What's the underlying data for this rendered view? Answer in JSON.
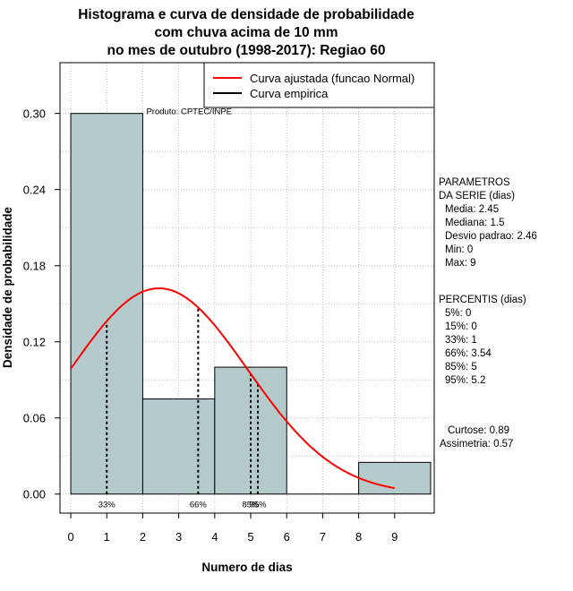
{
  "chart_data": {
    "type": "bar",
    "title_lines": [
      "Histograma e curva de densidade de probabilidade",
      "com chuva acima de 10 mm",
      "no mes de outubro (1998-2017): Regiao 60"
    ],
    "xlabel": "Numero de dias",
    "ylabel": "Densidade de probabilidade",
    "xlim": [
      -0.3,
      10.1
    ],
    "ylim": [
      -0.015,
      0.34
    ],
    "x_ticks": [
      0,
      1,
      2,
      3,
      4,
      5,
      6,
      7,
      8,
      9
    ],
    "y_ticks": [
      0.0,
      0.06,
      0.12,
      0.18,
      0.24,
      0.3
    ],
    "y_tick_labels": [
      "0.00",
      "0.06",
      "0.12",
      "0.18",
      "0.24",
      "0.30"
    ],
    "bins": [
      {
        "start": 0,
        "end": 2,
        "density": 0.3
      },
      {
        "start": 2,
        "end": 4,
        "density": 0.075
      },
      {
        "start": 4,
        "end": 6,
        "density": 0.1
      },
      {
        "start": 6,
        "end": 8,
        "density": 0.0
      },
      {
        "start": 8,
        "end": 10,
        "density": 0.025
      }
    ],
    "bar_color": "#b5cbcb",
    "normal_curve": {
      "mean": 2.45,
      "sd": 2.46,
      "x_from": 0,
      "x_to": 9,
      "color": "#ff0000"
    },
    "percentile_markers": [
      {
        "x": 1,
        "label": "33%"
      },
      {
        "x": 3.54,
        "label": "66%"
      },
      {
        "x": 5,
        "label": "85%"
      },
      {
        "x": 5.2,
        "label": "95%"
      }
    ],
    "produto_label": "Produto: CPTEC/INPE",
    "legend": [
      {
        "label": "Curva ajustada (funcao Normal)",
        "color": "#ff0000"
      },
      {
        "label": "Curva empirica",
        "color": "#000000"
      }
    ],
    "parametros_lines": [
      "PARAMETROS",
      "DA SERIE (dias)",
      "Media: 2.45",
      "Mediana: 1.5",
      "Desvio padrao: 2.46",
      "Min: 0",
      "Max: 9"
    ],
    "percentis_lines": [
      "PERCENTIS (dias)",
      "5%: 0",
      "15%: 0",
      "33%: 1",
      "66%: 3.54",
      "85%: 5",
      "95%: 5.2"
    ],
    "stats_lines": [
      "Curtose: 0.89",
      "Assimetria: 0.57"
    ]
  }
}
